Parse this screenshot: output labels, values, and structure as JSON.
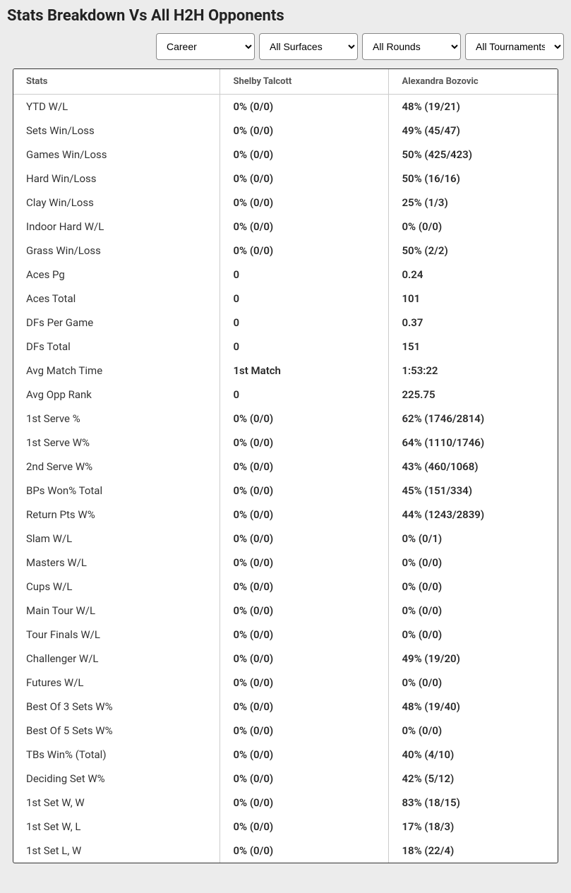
{
  "title": "Stats Breakdown Vs All H2H Opponents",
  "filters": {
    "career": "Career",
    "surfaces": "All Surfaces",
    "rounds": "All Rounds",
    "tournaments": "All Tournaments"
  },
  "table": {
    "headers": {
      "stats": "Stats",
      "player1": "Shelby Talcott",
      "player2": "Alexandra Bozovic"
    },
    "rows": [
      {
        "stat": "YTD W/L",
        "p1": "0% (0/0)",
        "p2": "48% (19/21)"
      },
      {
        "stat": "Sets Win/Loss",
        "p1": "0% (0/0)",
        "p2": "49% (45/47)"
      },
      {
        "stat": "Games Win/Loss",
        "p1": "0% (0/0)",
        "p2": "50% (425/423)"
      },
      {
        "stat": "Hard Win/Loss",
        "p1": "0% (0/0)",
        "p2": "50% (16/16)"
      },
      {
        "stat": "Clay Win/Loss",
        "p1": "0% (0/0)",
        "p2": "25% (1/3)"
      },
      {
        "stat": "Indoor Hard W/L",
        "p1": "0% (0/0)",
        "p2": "0% (0/0)"
      },
      {
        "stat": "Grass Win/Loss",
        "p1": "0% (0/0)",
        "p2": "50% (2/2)"
      },
      {
        "stat": "Aces Pg",
        "p1": "0",
        "p2": "0.24"
      },
      {
        "stat": "Aces Total",
        "p1": "0",
        "p2": "101"
      },
      {
        "stat": "DFs Per Game",
        "p1": "0",
        "p2": "0.37"
      },
      {
        "stat": "DFs Total",
        "p1": "0",
        "p2": "151"
      },
      {
        "stat": "Avg Match Time",
        "p1": "1st Match",
        "p2": "1:53:22"
      },
      {
        "stat": "Avg Opp Rank",
        "p1": "0",
        "p2": "225.75"
      },
      {
        "stat": "1st Serve %",
        "p1": "0% (0/0)",
        "p2": "62% (1746/2814)"
      },
      {
        "stat": "1st Serve W%",
        "p1": "0% (0/0)",
        "p2": "64% (1110/1746)"
      },
      {
        "stat": "2nd Serve W%",
        "p1": "0% (0/0)",
        "p2": "43% (460/1068)"
      },
      {
        "stat": "BPs Won% Total",
        "p1": "0% (0/0)",
        "p2": "45% (151/334)"
      },
      {
        "stat": "Return Pts W%",
        "p1": "0% (0/0)",
        "p2": "44% (1243/2839)"
      },
      {
        "stat": "Slam W/L",
        "p1": "0% (0/0)",
        "p2": "0% (0/1)"
      },
      {
        "stat": "Masters W/L",
        "p1": "0% (0/0)",
        "p2": "0% (0/0)"
      },
      {
        "stat": "Cups W/L",
        "p1": "0% (0/0)",
        "p2": "0% (0/0)"
      },
      {
        "stat": "Main Tour W/L",
        "p1": "0% (0/0)",
        "p2": "0% (0/0)"
      },
      {
        "stat": "Tour Finals W/L",
        "p1": "0% (0/0)",
        "p2": "0% (0/0)"
      },
      {
        "stat": "Challenger W/L",
        "p1": "0% (0/0)",
        "p2": "49% (19/20)"
      },
      {
        "stat": "Futures W/L",
        "p1": "0% (0/0)",
        "p2": "0% (0/0)"
      },
      {
        "stat": "Best Of 3 Sets W%",
        "p1": "0% (0/0)",
        "p2": "48% (19/40)"
      },
      {
        "stat": "Best Of 5 Sets W%",
        "p1": "0% (0/0)",
        "p2": "0% (0/0)"
      },
      {
        "stat": "TBs Win% (Total)",
        "p1": "0% (0/0)",
        "p2": "40% (4/10)"
      },
      {
        "stat": "Deciding Set W%",
        "p1": "0% (0/0)",
        "p2": "42% (5/12)"
      },
      {
        "stat": "1st Set W, W",
        "p1": "0% (0/0)",
        "p2": "83% (18/15)"
      },
      {
        "stat": "1st Set W, L",
        "p1": "0% (0/0)",
        "p2": "17% (18/3)"
      },
      {
        "stat": "1st Set L, W",
        "p1": "0% (0/0)",
        "p2": "18% (22/4)"
      }
    ]
  }
}
